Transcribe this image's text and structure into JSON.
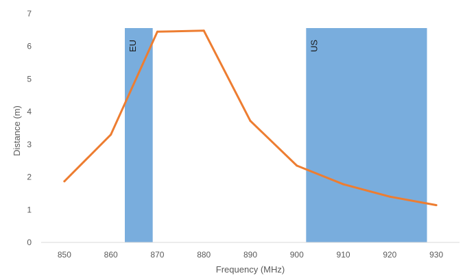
{
  "chart_data": {
    "type": "line",
    "xlabel": "Frequency (MHz)",
    "ylabel": "Distance (m)",
    "xlim": [
      845,
      935
    ],
    "ylim": [
      0,
      7
    ],
    "x_ticks": [
      850,
      860,
      870,
      880,
      890,
      900,
      910,
      920,
      930
    ],
    "y_ticks": [
      0,
      1,
      2,
      3,
      4,
      5,
      6,
      7
    ],
    "series": [
      {
        "color": "#ed7d31",
        "x": [
          850,
          860,
          870,
          880,
          890,
          900,
          910,
          920,
          930
        ],
        "y": [
          1.87,
          3.3,
          6.45,
          6.48,
          3.72,
          2.35,
          1.78,
          1.4,
          1.14
        ]
      }
    ],
    "bands": [
      {
        "label": "EU",
        "x_range": [
          863,
          869
        ],
        "color": "#5b9bd5"
      },
      {
        "label": "US",
        "x_range": [
          902,
          928
        ],
        "color": "#5b9bd5"
      }
    ],
    "grid": false,
    "legend": "none"
  }
}
